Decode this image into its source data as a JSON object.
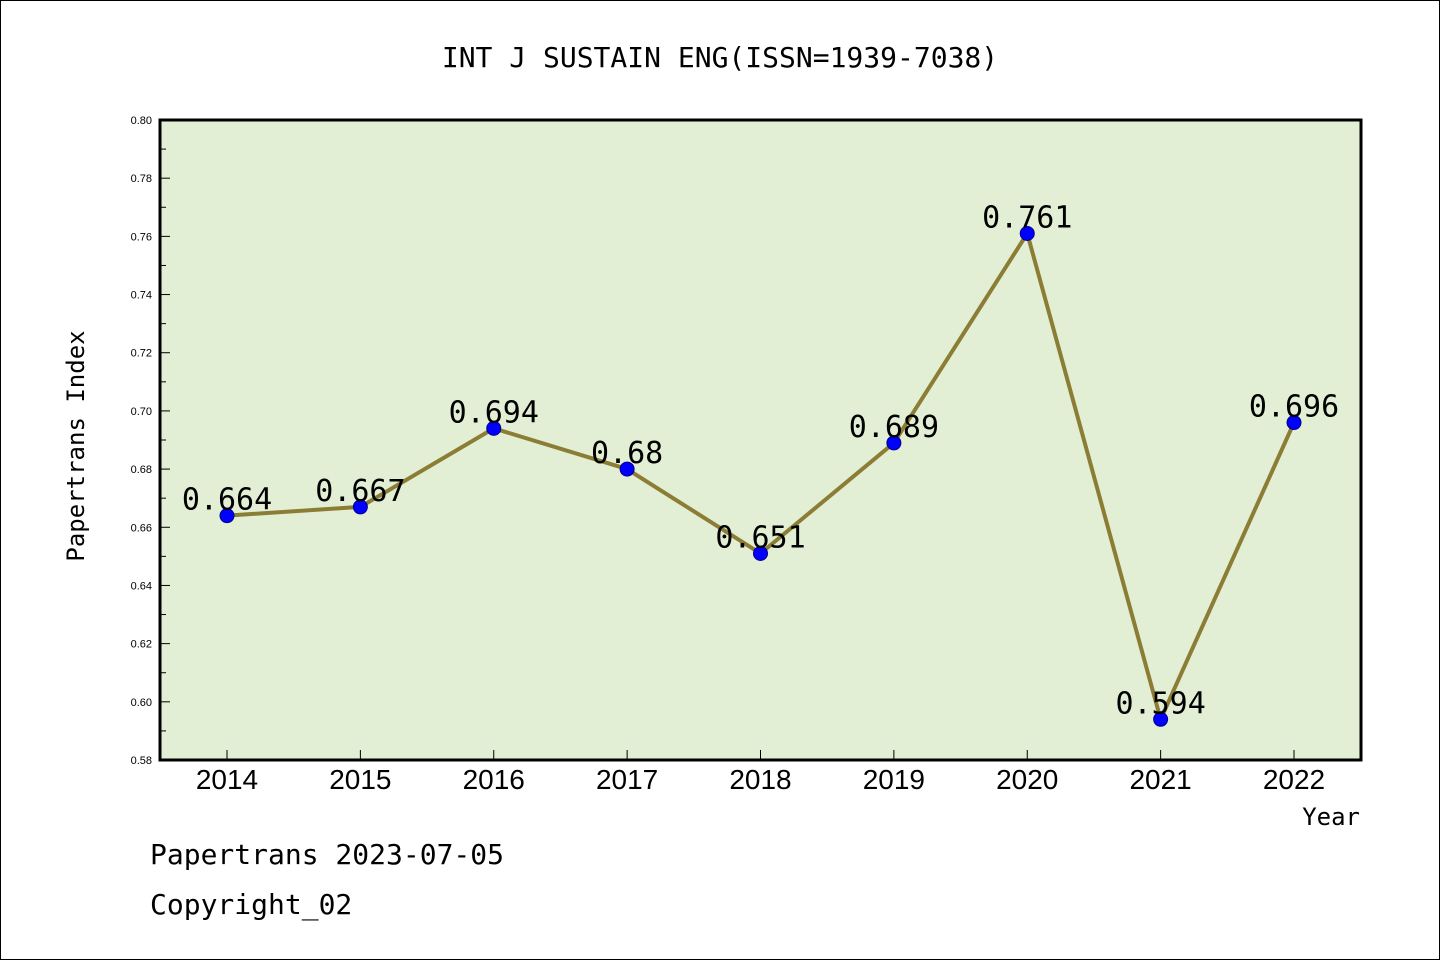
{
  "chart_data": {
    "type": "line",
    "title": "INT J SUSTAIN ENG(ISSN=1939-7038)",
    "xlabel": "Year",
    "ylabel": "Papertrans Index",
    "categories": [
      "2014",
      "2015",
      "2016",
      "2017",
      "2018",
      "2019",
      "2020",
      "2021",
      "2022"
    ],
    "series": [
      {
        "values": [
          0.664,
          0.667,
          0.694,
          0.68,
          0.651,
          0.689,
          0.761,
          0.594,
          0.696
        ],
        "data_labels": [
          "0.664",
          "0.667",
          "0.694",
          "0.68",
          "0.651",
          "0.689",
          "0.761",
          "0.594",
          "0.696"
        ]
      }
    ],
    "ylim": [
      0.58,
      0.8
    ],
    "yticks": [
      "0.58",
      "0.60",
      "0.62",
      "0.64",
      "0.66",
      "0.68",
      "0.70",
      "0.72",
      "0.74",
      "0.76",
      "0.78",
      "0.80"
    ],
    "grid": false,
    "colors": {
      "plot_background": "#e2efd5",
      "line": "#8c7d35",
      "marker": "#0000ff"
    }
  },
  "footer": {
    "line1": "Papertrans 2023-07-05",
    "line2": "Copyright_02"
  }
}
